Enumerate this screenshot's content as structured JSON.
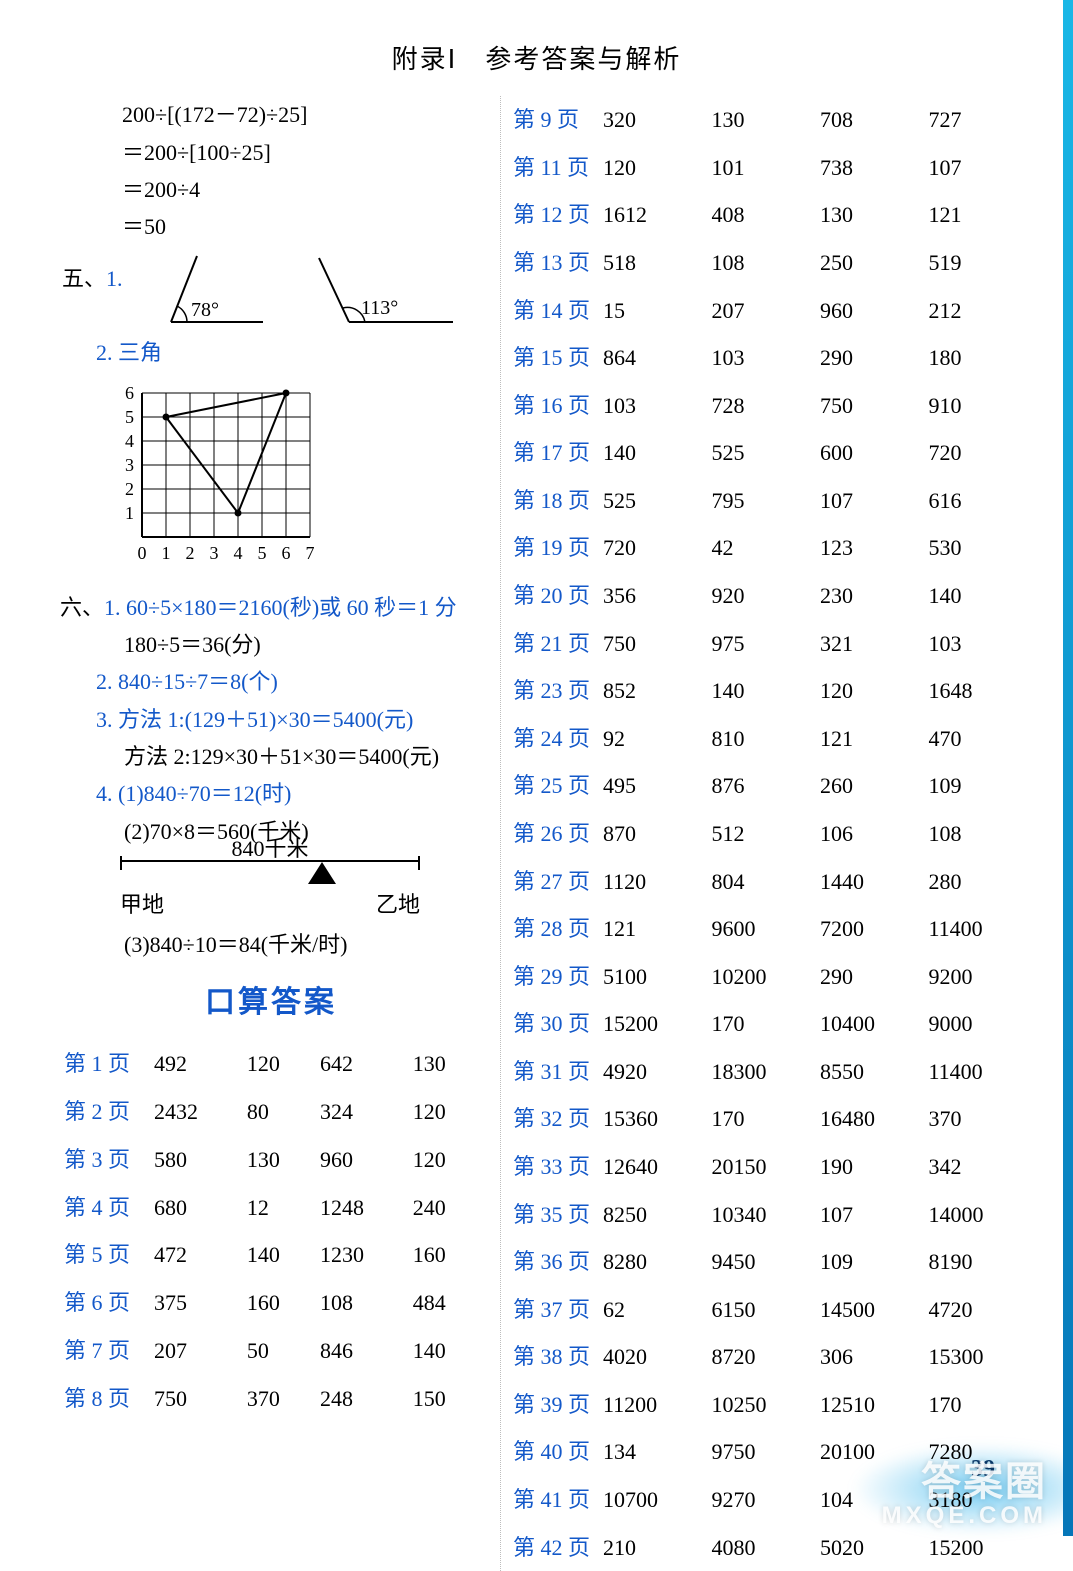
{
  "header": {
    "title": "附录Ⅰ　参考答案与解析"
  },
  "left": {
    "calc": [
      "200÷[(172－72)÷25]",
      "＝200÷[100÷25]",
      "＝200÷4",
      "＝50"
    ],
    "sec5Label": "五、",
    "item51": "1.",
    "angles": {
      "a1": "78°",
      "a2": "113°"
    },
    "item52": "2. 三角",
    "chart": {
      "xticks": [
        "0",
        "1",
        "2",
        "3",
        "4",
        "5",
        "6",
        "7"
      ],
      "yticks": [
        "1",
        "2",
        "3",
        "4",
        "5",
        "6"
      ],
      "cell": 24,
      "points": [
        [
          1,
          5
        ],
        [
          4,
          1
        ],
        [
          6,
          6
        ]
      ],
      "stroke": "#000000",
      "grid": "#000000"
    },
    "sec6Label": "六、",
    "six": [
      "1. 60÷5×180＝2160(秒)或 60 秒＝1 分",
      "180÷5＝36(分)",
      "2. 840÷15÷7＝8(个)",
      "3. 方法 1:(129＋51)×30＝5400(元)",
      "方法 2:129×30＋51×30＝5400(元)",
      "4. (1)840÷70＝12(时)",
      "(2)70×8＝560(千米)"
    ],
    "distance": {
      "value": "840千米",
      "left": "甲地",
      "right": "乙地"
    },
    "sixAfter": "(3)840÷10＝84(千米/时)",
    "ansTitle": "口算答案",
    "leftTable": [
      {
        "pg": "第 1 页",
        "v": [
          "492",
          "120",
          "642",
          "130"
        ]
      },
      {
        "pg": "第 2 页",
        "v": [
          "2432",
          "80",
          "324",
          "120"
        ]
      },
      {
        "pg": "第 3 页",
        "v": [
          "580",
          "130",
          "960",
          "120"
        ]
      },
      {
        "pg": "第 4 页",
        "v": [
          "680",
          "12",
          "1248",
          "240"
        ]
      },
      {
        "pg": "第 5 页",
        "v": [
          "472",
          "140",
          "1230",
          "160"
        ]
      },
      {
        "pg": "第 6 页",
        "v": [
          "375",
          "160",
          "108",
          "484"
        ]
      },
      {
        "pg": "第 7 页",
        "v": [
          "207",
          "50",
          "846",
          "140"
        ]
      },
      {
        "pg": "第 8 页",
        "v": [
          "750",
          "370",
          "248",
          "150"
        ]
      }
    ]
  },
  "rightTable": [
    {
      "pg": "第 9 页",
      "v": [
        "320",
        "130",
        "708",
        "727"
      ]
    },
    {
      "pg": "第 11 页",
      "v": [
        "120",
        "101",
        "738",
        "107"
      ]
    },
    {
      "pg": "第 12 页",
      "v": [
        "1612",
        "408",
        "130",
        "121"
      ]
    },
    {
      "pg": "第 13 页",
      "v": [
        "518",
        "108",
        "250",
        "519"
      ]
    },
    {
      "pg": "第 14 页",
      "v": [
        "15",
        "207",
        "960",
        "212"
      ]
    },
    {
      "pg": "第 15 页",
      "v": [
        "864",
        "103",
        "290",
        "180"
      ]
    },
    {
      "pg": "第 16 页",
      "v": [
        "103",
        "728",
        "750",
        "910"
      ]
    },
    {
      "pg": "第 17 页",
      "v": [
        "140",
        "525",
        "600",
        "720"
      ]
    },
    {
      "pg": "第 18 页",
      "v": [
        "525",
        "795",
        "107",
        "616"
      ]
    },
    {
      "pg": "第 19 页",
      "v": [
        "720",
        "42",
        "123",
        "530"
      ]
    },
    {
      "pg": "第 20 页",
      "v": [
        "356",
        "920",
        "230",
        "140"
      ]
    },
    {
      "pg": "第 21 页",
      "v": [
        "750",
        "975",
        "321",
        "103"
      ]
    },
    {
      "pg": "第 23 页",
      "v": [
        "852",
        "140",
        "120",
        "1648"
      ]
    },
    {
      "pg": "第 24 页",
      "v": [
        "92",
        "810",
        "121",
        "470"
      ]
    },
    {
      "pg": "第 25 页",
      "v": [
        "495",
        "876",
        "260",
        "109"
      ]
    },
    {
      "pg": "第 26 页",
      "v": [
        "870",
        "512",
        "106",
        "108"
      ]
    },
    {
      "pg": "第 27 页",
      "v": [
        "1120",
        "804",
        "1440",
        "280"
      ]
    },
    {
      "pg": "第 28 页",
      "v": [
        "121",
        "9600",
        "7200",
        "11400"
      ]
    },
    {
      "pg": "第 29 页",
      "v": [
        "5100",
        "10200",
        "290",
        "9200"
      ]
    },
    {
      "pg": "第 30 页",
      "v": [
        "15200",
        "170",
        "10400",
        "9000"
      ]
    },
    {
      "pg": "第 31 页",
      "v": [
        "4920",
        "18300",
        "8550",
        "11400"
      ]
    },
    {
      "pg": "第 32 页",
      "v": [
        "15360",
        "170",
        "16480",
        "370"
      ]
    },
    {
      "pg": "第 33 页",
      "v": [
        "12640",
        "20150",
        "190",
        "342"
      ]
    },
    {
      "pg": "第 35 页",
      "v": [
        "8250",
        "10340",
        "107",
        "14000"
      ]
    },
    {
      "pg": "第 36 页",
      "v": [
        "8280",
        "9450",
        "109",
        "8190"
      ]
    },
    {
      "pg": "第 37 页",
      "v": [
        "62",
        "6150",
        "14500",
        "4720"
      ]
    },
    {
      "pg": "第 38 页",
      "v": [
        "4020",
        "8720",
        "306",
        "15300"
      ]
    },
    {
      "pg": "第 39 页",
      "v": [
        "11200",
        "10250",
        "12510",
        "170"
      ]
    },
    {
      "pg": "第 40 页",
      "v": [
        "134",
        "9750",
        "20100",
        "7280"
      ]
    },
    {
      "pg": "第 41 页",
      "v": [
        "10700",
        "9270",
        "104",
        "3180"
      ]
    },
    {
      "pg": "第 42 页",
      "v": [
        "210",
        "4080",
        "5020",
        "15200"
      ]
    }
  ],
  "footer": {
    "pageNumber": "39"
  },
  "watermark": {
    "l1": "答案圈",
    "l2": "MXQE.COM"
  },
  "colors": {
    "blue": "#1358c9",
    "edgeTop": "#19b7e6",
    "edgeBottom": "#0576b8"
  }
}
